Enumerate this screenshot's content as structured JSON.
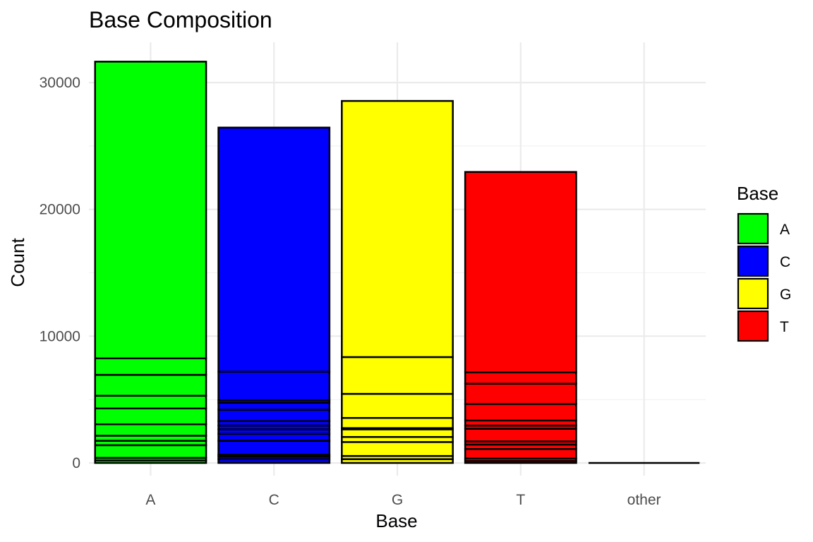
{
  "chart_data": {
    "type": "bar",
    "title": "Base Composition",
    "xlabel": "Base",
    "ylabel": "Count",
    "categories": [
      "A",
      "C",
      "G",
      "T",
      "other"
    ],
    "ylim": [
      0,
      33000
    ],
    "yticks": [
      0,
      10000,
      20000,
      30000
    ],
    "ytick_labels": [
      "0",
      "10000",
      "20000",
      "30000"
    ],
    "grid": true,
    "stacked": true,
    "colors": {
      "A": "#00ff00",
      "C": "#0000ff",
      "G": "#ffff00",
      "T": "#ff0000",
      "other": "#ffffff"
    },
    "totals": [
      31650,
      26450,
      28550,
      22950,
      0
    ],
    "segment_boundaries": {
      "A": [
        0,
        200,
        400,
        1400,
        1750,
        2150,
        3050,
        4300,
        5300,
        6950,
        8250,
        31650
      ],
      "C": [
        0,
        300,
        500,
        650,
        1750,
        2300,
        2650,
        2950,
        3300,
        4200,
        4750,
        4950,
        7200,
        26450
      ],
      "G": [
        0,
        300,
        550,
        1650,
        2050,
        2650,
        2750,
        3550,
        5450,
        8350,
        28550
      ],
      "T": [
        0,
        150,
        350,
        1100,
        1450,
        1700,
        2700,
        2950,
        3350,
        4650,
        6250,
        7150,
        22950
      ],
      "other": [
        0,
        0
      ]
    },
    "legend": {
      "title": "Base",
      "placement": "right",
      "entries": [
        {
          "label": "A",
          "color": "#00ff00"
        },
        {
          "label": "C",
          "color": "#0000ff"
        },
        {
          "label": "G",
          "color": "#ffff00"
        },
        {
          "label": "T",
          "color": "#ff0000"
        }
      ]
    }
  }
}
